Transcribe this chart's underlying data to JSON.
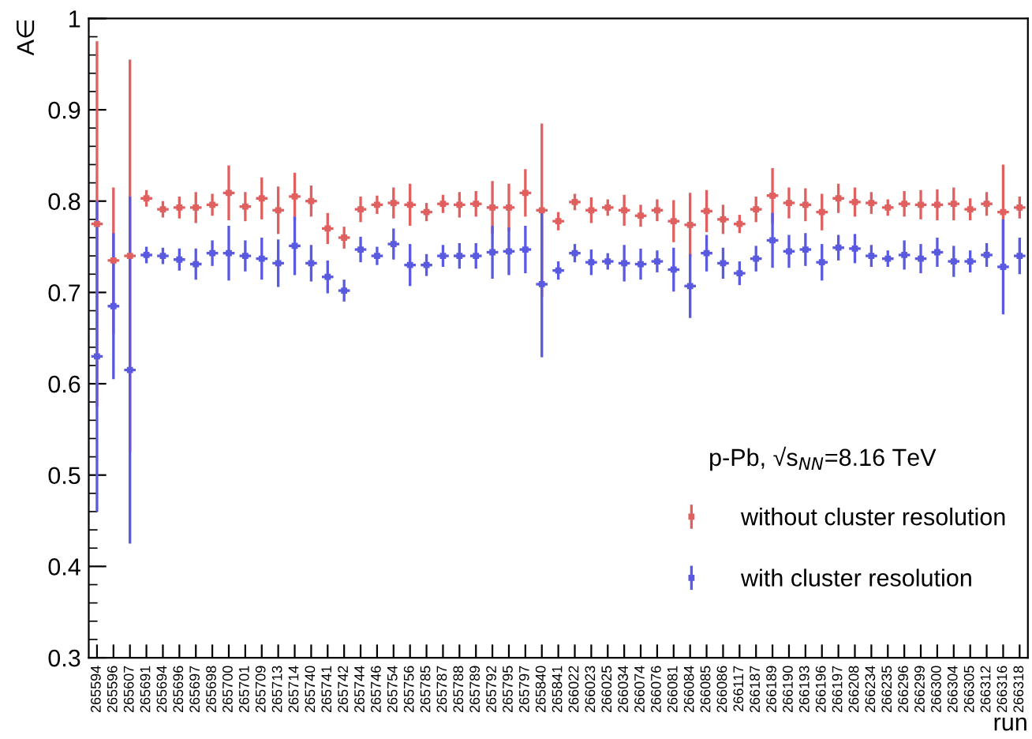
{
  "chart_data": {
    "type": "scatter",
    "ylabel": "A∈",
    "xlabel": "run",
    "categories": [
      "265594",
      "265596",
      "265607",
      "265691",
      "265694",
      "265696",
      "265697",
      "265698",
      "265700",
      "265701",
      "265709",
      "265713",
      "265714",
      "265740",
      "265741",
      "265742",
      "265744",
      "265746",
      "265754",
      "265756",
      "265785",
      "265787",
      "265788",
      "265789",
      "265792",
      "265795",
      "265797",
      "265840",
      "265841",
      "266022",
      "266023",
      "266025",
      "266034",
      "266074",
      "266076",
      "266081",
      "266084",
      "266085",
      "266086",
      "266117",
      "266187",
      "266189",
      "266190",
      "266193",
      "266196",
      "266197",
      "266208",
      "266234",
      "266235",
      "266296",
      "266299",
      "266300",
      "266304",
      "266305",
      "266312",
      "266316",
      "266318"
    ],
    "series": [
      {
        "name": "without cluster resolution",
        "color": "#e06060",
        "values": [
          0.775,
          0.735,
          0.74,
          0.803,
          0.791,
          0.793,
          0.793,
          0.796,
          0.809,
          0.794,
          0.803,
          0.79,
          0.805,
          0.8,
          0.77,
          0.76,
          0.791,
          0.796,
          0.798,
          0.796,
          0.788,
          0.797,
          0.796,
          0.797,
          0.793,
          0.793,
          0.809,
          0.79,
          0.778,
          0.799,
          0.79,
          0.793,
          0.79,
          0.784,
          0.79,
          0.778,
          0.774,
          0.789,
          0.78,
          0.775,
          0.791,
          0.806,
          0.798,
          0.796,
          0.788,
          0.803,
          0.799,
          0.798,
          0.793,
          0.797,
          0.796,
          0.796,
          0.797,
          0.791,
          0.797,
          0.788,
          0.793
        ],
        "errors": [
          0.2,
          0.08,
          0.215,
          0.009,
          0.009,
          0.012,
          0.017,
          0.012,
          0.03,
          0.016,
          0.023,
          0.026,
          0.026,
          0.017,
          0.017,
          0.012,
          0.014,
          0.01,
          0.017,
          0.023,
          0.01,
          0.01,
          0.014,
          0.014,
          0.029,
          0.026,
          0.026,
          0.095,
          0.01,
          0.009,
          0.014,
          0.009,
          0.017,
          0.012,
          0.012,
          0.023,
          0.035,
          0.023,
          0.016,
          0.01,
          0.014,
          0.03,
          0.017,
          0.018,
          0.02,
          0.016,
          0.016,
          0.012,
          0.009,
          0.014,
          0.016,
          0.017,
          0.018,
          0.012,
          0.013,
          0.052,
          0.012
        ]
      },
      {
        "name": "with cluster resolution",
        "color": "#5a5ae0",
        "values": [
          0.63,
          0.685,
          0.615,
          0.741,
          0.74,
          0.736,
          0.731,
          0.743,
          0.743,
          0.74,
          0.737,
          0.732,
          0.751,
          0.732,
          0.717,
          0.702,
          0.747,
          0.74,
          0.753,
          0.73,
          0.73,
          0.74,
          0.74,
          0.74,
          0.744,
          0.745,
          0.747,
          0.709,
          0.724,
          0.743,
          0.733,
          0.734,
          0.732,
          0.731,
          0.734,
          0.725,
          0.707,
          0.743,
          0.732,
          0.721,
          0.737,
          0.757,
          0.745,
          0.747,
          0.733,
          0.749,
          0.748,
          0.74,
          0.737,
          0.741,
          0.737,
          0.744,
          0.734,
          0.734,
          0.741,
          0.728,
          0.74
        ],
        "errors": [
          0.17,
          0.08,
          0.19,
          0.009,
          0.009,
          0.012,
          0.017,
          0.014,
          0.03,
          0.017,
          0.023,
          0.026,
          0.032,
          0.02,
          0.018,
          0.012,
          0.014,
          0.01,
          0.017,
          0.023,
          0.012,
          0.012,
          0.014,
          0.014,
          0.029,
          0.026,
          0.026,
          0.08,
          0.01,
          0.01,
          0.014,
          0.009,
          0.02,
          0.017,
          0.012,
          0.024,
          0.035,
          0.02,
          0.017,
          0.013,
          0.014,
          0.03,
          0.018,
          0.018,
          0.02,
          0.014,
          0.016,
          0.012,
          0.009,
          0.016,
          0.016,
          0.016,
          0.017,
          0.012,
          0.013,
          0.052,
          0.02
        ]
      }
    ],
    "ylim": [
      0.3,
      1
    ],
    "yticks": [
      0.3,
      0.4,
      0.5,
      0.6,
      0.7,
      0.8,
      0.9,
      1
    ],
    "grid": false,
    "legend": "bottom right",
    "marker": "square",
    "annotations": [
      "p-Pb, √s$_{NN}$=8.16 TeV"
    ]
  }
}
